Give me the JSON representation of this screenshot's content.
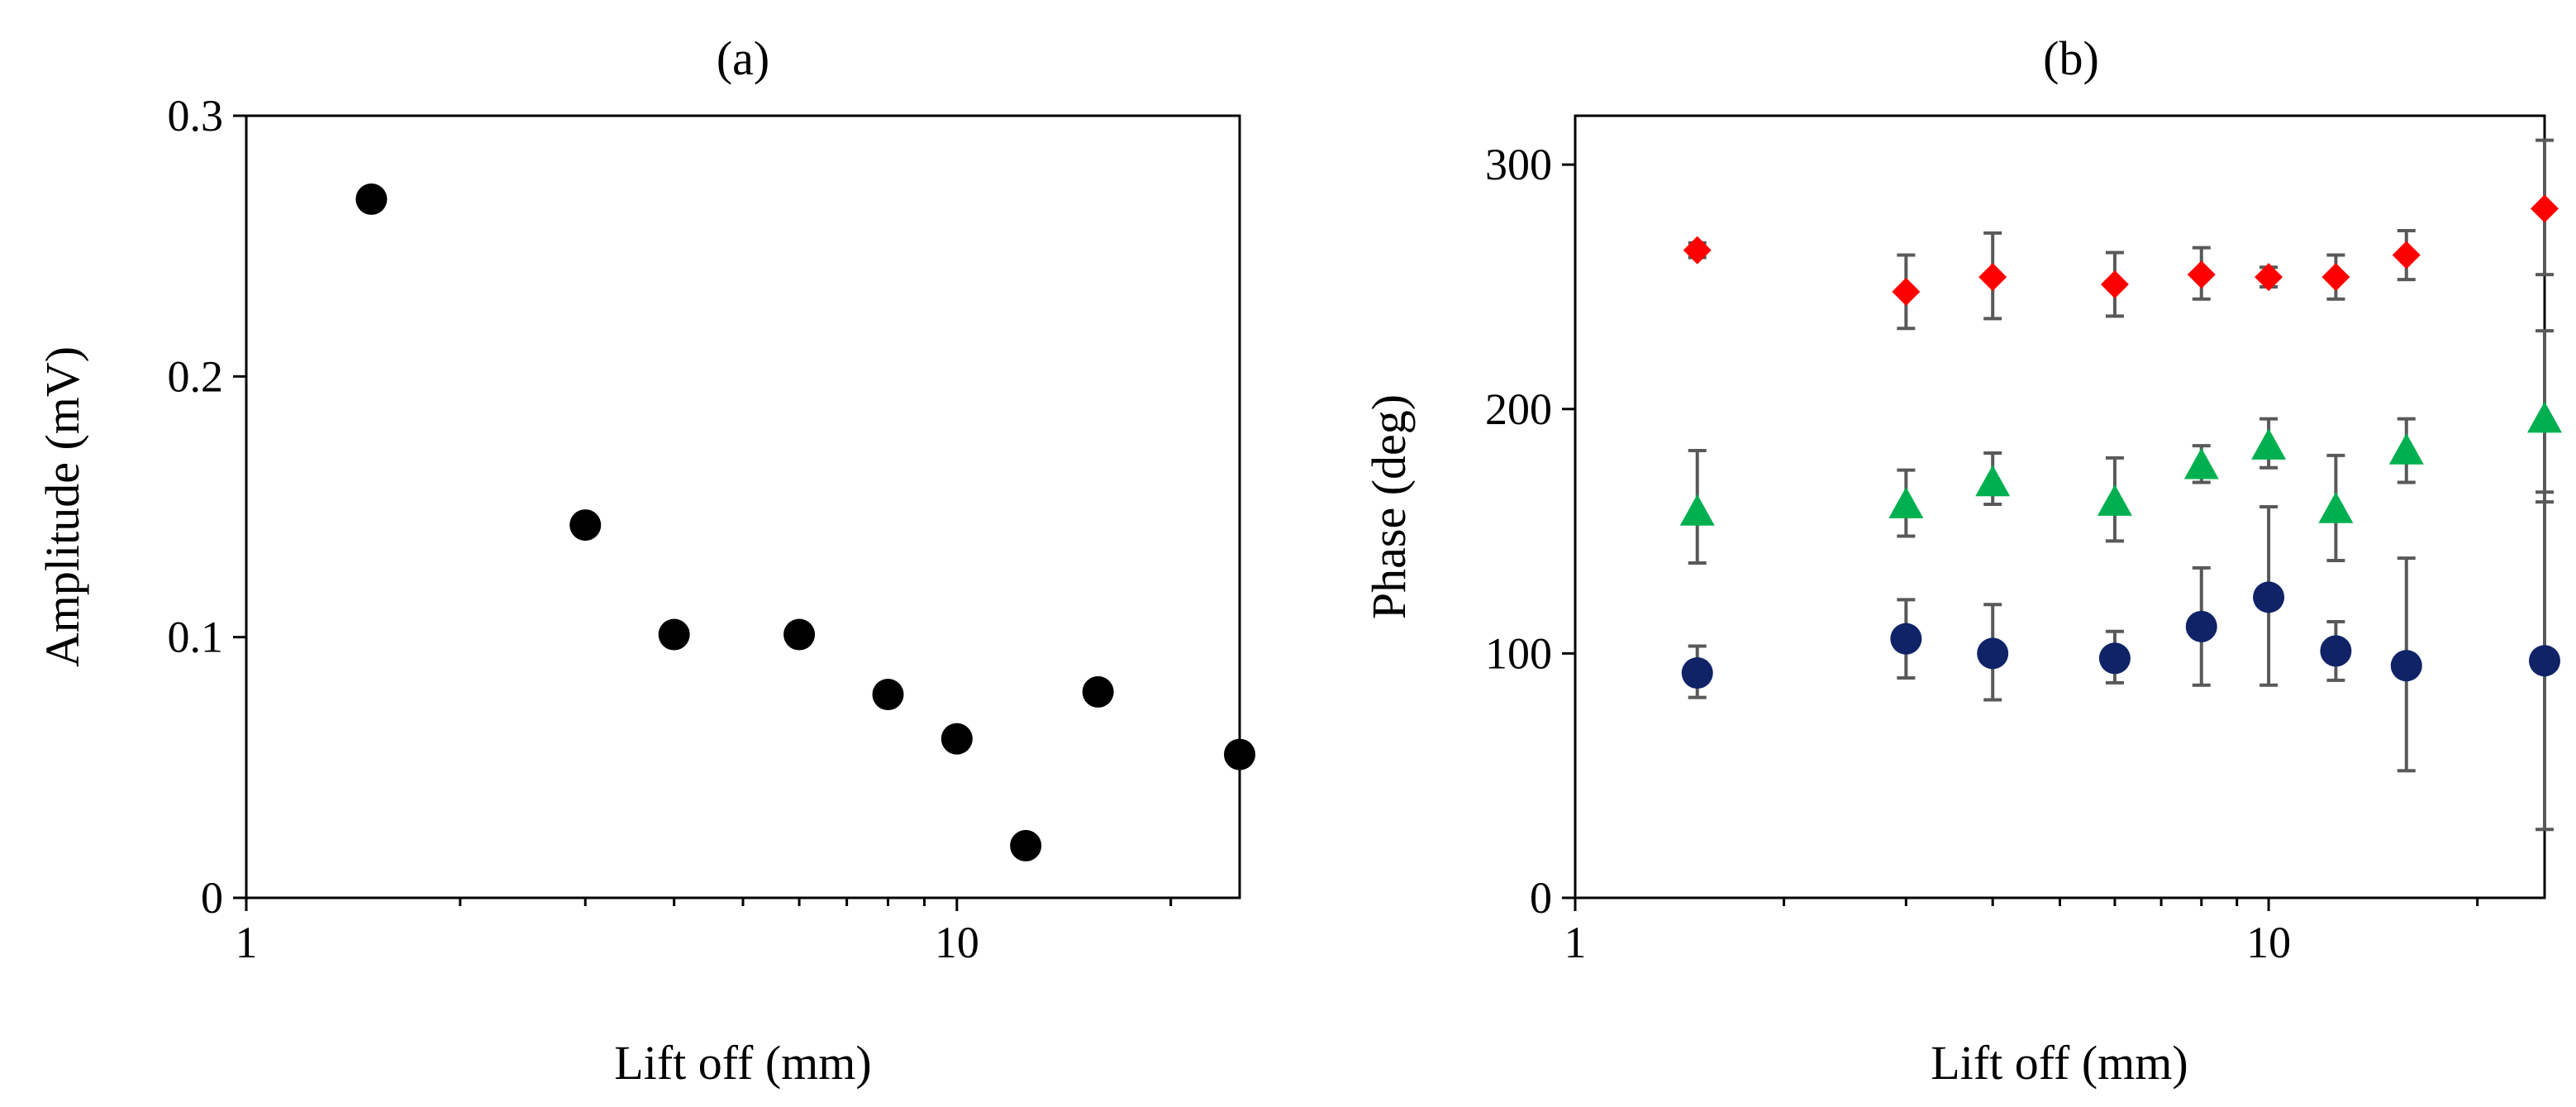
{
  "chart_data": [
    {
      "type": "scatter",
      "title": "(a)",
      "xlabel": "Lift off (mm)",
      "ylabel": "Amplitude (mV)",
      "xscale": "log",
      "xlim": [
        1,
        25
      ],
      "ylim": [
        0,
        0.3
      ],
      "xticks": [
        1,
        10
      ],
      "xtick_labels": [
        "1",
        "10"
      ],
      "yticks": [
        0,
        0.1,
        0.2,
        0.3
      ],
      "ytick_labels": [
        "0",
        "0.1",
        "0.2",
        "0.3"
      ],
      "grid": false,
      "series": [
        {
          "marker": "circle",
          "color": "#000000",
          "x": [
            1.5,
            3,
            4,
            6,
            8,
            10,
            12.5,
            15.8,
            25
          ],
          "y": [
            0.268,
            0.143,
            0.101,
            0.101,
            0.078,
            0.061,
            0.02,
            0.079,
            0.055
          ]
        }
      ]
    },
    {
      "type": "scatter",
      "title": "(b)",
      "xlabel": "Lift off (mm)",
      "ylabel": "Phase (deg)",
      "xscale": "log",
      "xlim": [
        1,
        25
      ],
      "ylim": [
        0,
        320
      ],
      "xticks": [
        1,
        10
      ],
      "xtick_labels": [
        "1",
        "10"
      ],
      "yticks": [
        0,
        100,
        200,
        300
      ],
      "ytick_labels": [
        "0",
        "100",
        "200",
        "300"
      ],
      "grid": false,
      "series": [
        {
          "marker": "diamond",
          "color": "#ff0000",
          "x": [
            1.5,
            3,
            4,
            6,
            8,
            10,
            12.5,
            15.8,
            25
          ],
          "y": [
            265,
            248,
            254,
            251,
            255,
            254,
            254,
            263,
            282
          ],
          "err_low": [
            262,
            233,
            237,
            238,
            245,
            250,
            245,
            253,
            255
          ],
          "err_high": [
            268,
            263,
            272,
            264,
            266,
            258,
            263,
            273,
            310
          ]
        },
        {
          "marker": "triangle",
          "color": "#00b050",
          "x": [
            1.5,
            3,
            4,
            6,
            8,
            10,
            12.5,
            15.8,
            25
          ],
          "y": [
            158,
            161,
            170,
            162,
            177,
            185,
            159,
            183,
            196
          ],
          "err_low": [
            137,
            148,
            161,
            146,
            170,
            176,
            138,
            170,
            162
          ],
          "err_high": [
            183,
            175,
            182,
            180,
            185,
            196,
            181,
            196,
            232
          ]
        },
        {
          "marker": "circle",
          "color": "#0f2366",
          "x": [
            1.5,
            3,
            4,
            6,
            8,
            10,
            12.5,
            15.8,
            25
          ],
          "y": [
            92,
            106,
            100,
            98,
            111,
            123,
            101,
            95,
            97
          ],
          "err_low": [
            82,
            90,
            81,
            88,
            87,
            87,
            89,
            52,
            28
          ],
          "err_high": [
            103,
            122,
            120,
            109,
            135,
            160,
            113,
            139,
            166
          ]
        }
      ]
    }
  ]
}
